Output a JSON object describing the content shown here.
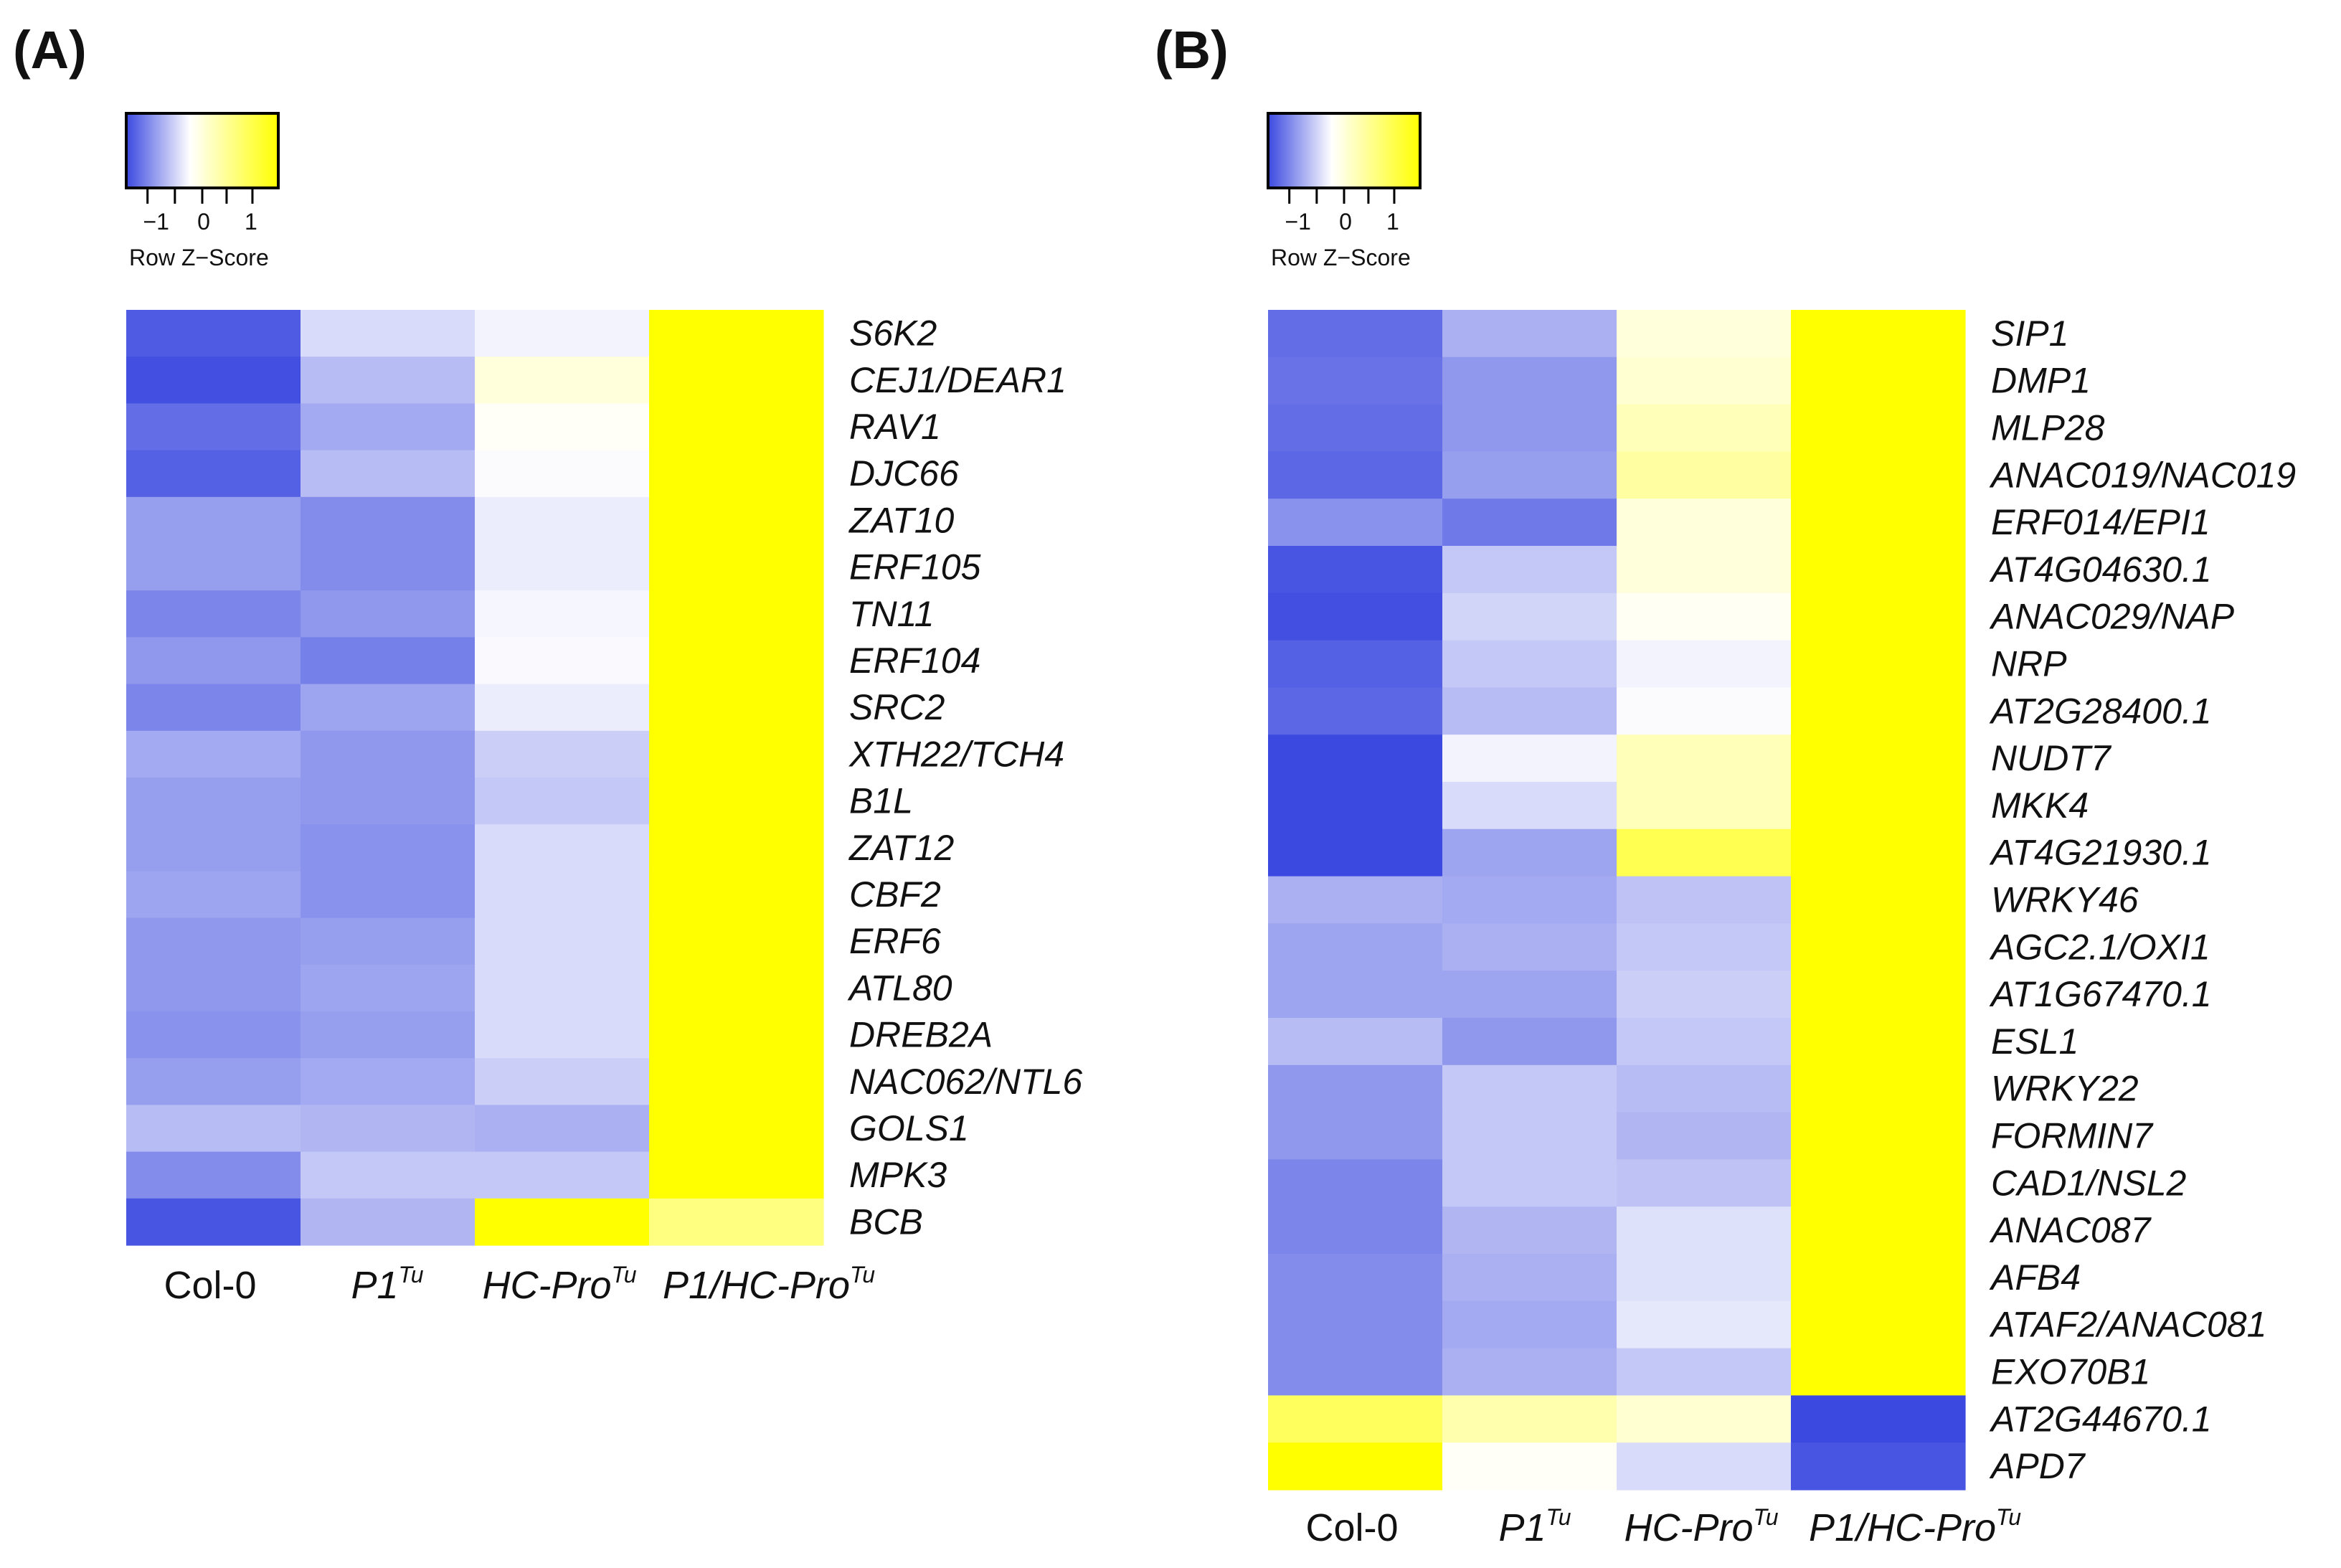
{
  "chart_data": [
    {
      "type": "heatmap",
      "panel_label": "(A)",
      "color_key": {
        "label": "Row Z−Score",
        "ticks": [
          "−1",
          "0",
          "1"
        ],
        "low_color": "#3b49e0",
        "mid_color": "#ffffff",
        "high_color": "#ffff00"
      },
      "columns": [
        {
          "base": "Col-0",
          "sup": "",
          "italic": false
        },
        {
          "base": "P1",
          "sup": "Tu",
          "italic": true
        },
        {
          "base": "HC-Pro",
          "sup": "Tu",
          "italic": true
        },
        {
          "base": "P1/HC-Pro",
          "sup": "Tu",
          "italic": true
        }
      ],
      "rows": [
        "S6K2",
        "CEJ1/DEAR1",
        "RAV1",
        "DJC66",
        "ZAT10",
        "ERF105",
        "TN11",
        "ERF104",
        "SRC2",
        "XTH22/TCH4",
        "B1L",
        "ZAT12",
        "CBF2",
        "ERF6",
        "ATL80",
        "DREB2A",
        "NAC062/NTL6",
        "GOLS1",
        "MPK3",
        "BCB"
      ],
      "values": [
        [
          -1.35,
          -0.3,
          -0.1,
          1.5
        ],
        [
          -1.45,
          -0.55,
          0.15,
          1.5
        ],
        [
          -1.2,
          -0.7,
          0.03,
          1.5
        ],
        [
          -1.3,
          -0.55,
          -0.03,
          1.5
        ],
        [
          -0.8,
          -0.95,
          -0.15,
          1.5
        ],
        [
          -0.8,
          -0.95,
          -0.15,
          1.5
        ],
        [
          -1.0,
          -0.85,
          -0.07,
          1.5
        ],
        [
          -0.85,
          -1.05,
          -0.04,
          1.5
        ],
        [
          -1.0,
          -0.75,
          -0.15,
          1.5
        ],
        [
          -0.7,
          -0.85,
          -0.4,
          1.5
        ],
        [
          -0.8,
          -0.85,
          -0.45,
          1.5
        ],
        [
          -0.8,
          -0.9,
          -0.3,
          1.5
        ],
        [
          -0.75,
          -0.9,
          -0.3,
          1.5
        ],
        [
          -0.85,
          -0.8,
          -0.3,
          1.5
        ],
        [
          -0.85,
          -0.75,
          -0.3,
          1.5
        ],
        [
          -0.9,
          -0.8,
          -0.3,
          1.5
        ],
        [
          -0.8,
          -0.7,
          -0.4,
          1.5
        ],
        [
          -0.55,
          -0.6,
          -0.65,
          1.5
        ],
        [
          -0.95,
          -0.45,
          -0.45,
          1.5
        ],
        [
          -1.4,
          -0.6,
          1.5,
          0.55
        ]
      ]
    },
    {
      "type": "heatmap",
      "panel_label": "(B)",
      "color_key": {
        "label": "Row Z−Score",
        "ticks": [
          "−1",
          "0",
          "1"
        ],
        "low_color": "#3b49e0",
        "mid_color": "#ffffff",
        "high_color": "#ffff00"
      },
      "columns": [
        {
          "base": "Col-0",
          "sup": "",
          "italic": false
        },
        {
          "base": "P1",
          "sup": "Tu",
          "italic": true
        },
        {
          "base": "HC-Pro",
          "sup": "Tu",
          "italic": true
        },
        {
          "base": "P1/HC-Pro",
          "sup": "Tu",
          "italic": true
        }
      ],
      "rows": [
        "SIP1",
        "DMP1",
        "MLP28",
        "ANAC019/NAC019",
        "ERF014/EPI1",
        "AT4G04630.1",
        "ANAC029/NAP",
        "NRP",
        "AT2G28400.1",
        "NUDT7",
        "MKK4",
        "AT4G21930.1",
        "WRKY46",
        "AGC2.1/OXI1",
        "AT1G67470.1",
        "ESL1",
        "WRKY22",
        "FORMIN7",
        "CAD1/NSL2",
        "ANAC087",
        "AFB4",
        "ATAF2/ANAC081",
        "EXO70B1",
        "AT2G44670.1",
        "APD7"
      ],
      "values": [
        [
          -1.2,
          -0.65,
          0.15,
          1.5
        ],
        [
          -1.15,
          -0.85,
          0.2,
          1.5
        ],
        [
          -1.2,
          -0.85,
          0.3,
          1.5
        ],
        [
          -1.25,
          -0.8,
          0.4,
          1.5
        ],
        [
          -0.9,
          -1.1,
          0.15,
          1.5
        ],
        [
          -1.4,
          -0.45,
          0.15,
          1.5
        ],
        [
          -1.45,
          -0.35,
          0.05,
          1.5
        ],
        [
          -1.3,
          -0.45,
          -0.1,
          1.5
        ],
        [
          -1.25,
          -0.55,
          -0.03,
          1.5
        ],
        [
          -1.9,
          -0.1,
          0.3,
          1.35
        ],
        [
          -1.75,
          -0.3,
          0.3,
          1.35
        ],
        [
          -1.5,
          -0.75,
          0.75,
          1.2
        ],
        [
          -0.65,
          -0.7,
          -0.5,
          1.5
        ],
        [
          -0.75,
          -0.65,
          -0.45,
          1.5
        ],
        [
          -0.75,
          -0.75,
          -0.4,
          1.5
        ],
        [
          -0.55,
          -0.85,
          -0.45,
          1.5
        ],
        [
          -0.85,
          -0.45,
          -0.55,
          1.5
        ],
        [
          -0.85,
          -0.45,
          -0.6,
          1.5
        ],
        [
          -1.0,
          -0.45,
          -0.5,
          1.5
        ],
        [
          -1.0,
          -0.6,
          -0.25,
          1.5
        ],
        [
          -0.95,
          -0.65,
          -0.25,
          1.5
        ],
        [
          -0.95,
          -0.7,
          -0.2,
          1.5
        ],
        [
          -0.95,
          -0.65,
          -0.45,
          1.5
        ],
        [
          0.7,
          0.35,
          0.2,
          -2.0
        ],
        [
          1.5,
          0.03,
          -0.3,
          -1.4
        ]
      ]
    }
  ]
}
